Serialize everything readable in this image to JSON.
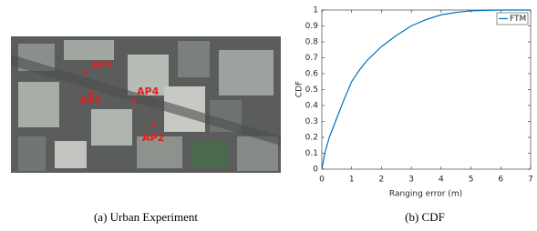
{
  "image": {
    "labels": [
      "AP3",
      "AP1",
      "AP4",
      "AP2"
    ]
  },
  "captions": [
    "(a) Urban Experiment",
    "(b) CDF"
  ],
  "chart_data": {
    "type": "line",
    "xlabel": "Ranging error (m)",
    "ylabel": "CDF",
    "x": [
      0,
      0.1,
      0.25,
      0.5,
      0.75,
      1,
      1.25,
      1.5,
      2,
      2.5,
      3,
      3.5,
      4,
      4.5,
      5,
      5.5,
      6,
      7
    ],
    "series": [
      {
        "name": "FTM",
        "color": "#0072bd",
        "values": [
          0,
          0.1,
          0.2,
          0.32,
          0.44,
          0.55,
          0.62,
          0.68,
          0.77,
          0.84,
          0.9,
          0.94,
          0.97,
          0.985,
          0.995,
          0.998,
          1,
          1
        ]
      }
    ],
    "xlim": [
      0,
      7
    ],
    "ylim": [
      0,
      1
    ],
    "xticks": [
      0,
      1,
      2,
      3,
      4,
      5,
      6,
      7
    ],
    "yticks": [
      0,
      0.1,
      0.2,
      0.3,
      0.4,
      0.5,
      0.6,
      0.7,
      0.8,
      0.9,
      1
    ],
    "legend": "upper right"
  }
}
